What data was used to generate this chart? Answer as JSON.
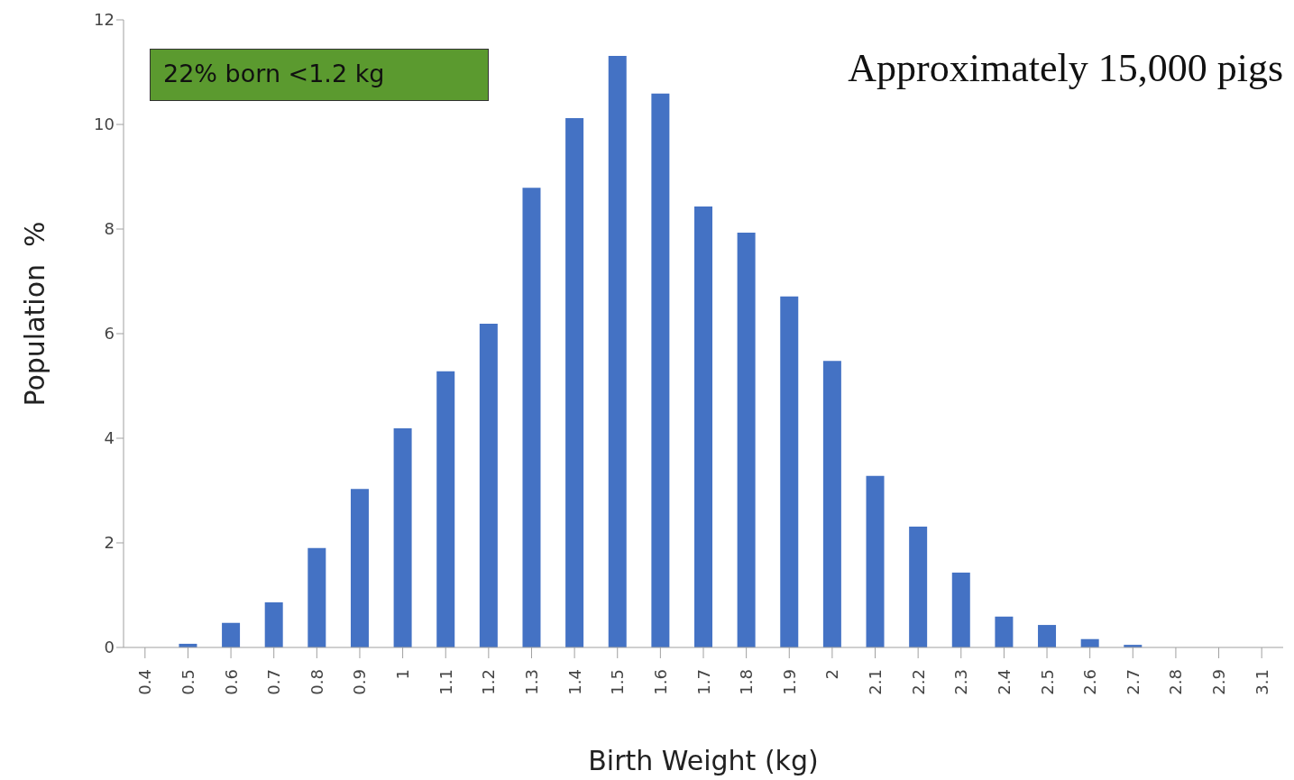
{
  "chart_data": {
    "type": "bar",
    "xlabel": "Birth Weight (kg)",
    "ylabel": "Population  %",
    "categories": [
      "0.4",
      "0.5",
      "0.6",
      "0.7",
      "0.8",
      "0.9",
      "1",
      "1.1",
      "1.2",
      "1.3",
      "1.4",
      "1.5",
      "1.6",
      "1.7",
      "1.8",
      "1.9",
      "2",
      "2.1",
      "2.2",
      "2.3",
      "2.4",
      "2.5",
      "2.6",
      "2.7",
      "2.8",
      "2.9",
      "3.1"
    ],
    "values": [
      0,
      0.07,
      0.47,
      0.86,
      1.9,
      3.03,
      4.19,
      5.28,
      6.19,
      8.79,
      10.12,
      11.31,
      10.59,
      8.43,
      7.93,
      6.71,
      5.48,
      3.28,
      2.31,
      1.43,
      0.59,
      0.43,
      0.16,
      0.05,
      0,
      0,
      0
    ],
    "color": "#4472c4",
    "ylim": [
      0,
      12
    ],
    "yticks": [
      0,
      2,
      4,
      6,
      8,
      10,
      12
    ],
    "grid": false,
    "annotations": [
      "22% born <1.2 kg",
      "Approximately 15,000 pigs"
    ]
  }
}
